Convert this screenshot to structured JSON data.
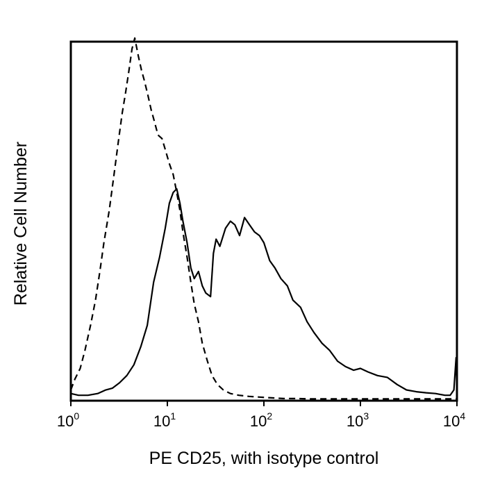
{
  "chart_data": {
    "type": "line",
    "title": "",
    "xlabel": "PE CD25, with isotype control",
    "ylabel": "Relative Cell Number",
    "xscale": "log10",
    "xlim": [
      1,
      10000
    ],
    "ylim": [
      0,
      100
    ],
    "grid": false,
    "x_ticks": [
      {
        "value": 1,
        "base": "10",
        "exp": "0"
      },
      {
        "value": 10,
        "base": "10",
        "exp": "1"
      },
      {
        "value": 100,
        "base": "10",
        "exp": "2"
      },
      {
        "value": 1000,
        "base": "10",
        "exp": "3"
      },
      {
        "value": 10000,
        "base": "10",
        "exp": "4"
      }
    ],
    "series": [
      {
        "name": "PE CD25",
        "style": "solid",
        "x": [
          1.0,
          1.2,
          1.5,
          1.9,
          2.3,
          2.7,
          3.2,
          3.8,
          4.5,
          5.3,
          6.2,
          7.2,
          8.3,
          9.5,
          10.5,
          11.5,
          12.5,
          13.5,
          14.5,
          16.0,
          17.5,
          19.0,
          21.0,
          23.0,
          25.0,
          28.0,
          30.0,
          32.0,
          35.0,
          40.0,
          45.0,
          50.0,
          56.0,
          63.0,
          71.0,
          80.0,
          90.0,
          100,
          115,
          130,
          150,
          175,
          200,
          240,
          280,
          330,
          400,
          480,
          580,
          700,
          850,
          1000,
          1200,
          1500,
          1900,
          2400,
          3000,
          3800,
          4800,
          6000,
          7500,
          8500,
          9300,
          9800,
          10000
        ],
        "y": [
          2,
          1.5,
          1.5,
          2,
          3,
          3.5,
          5,
          7,
          10,
          15,
          21,
          33,
          40,
          48,
          55,
          58,
          59,
          55,
          50,
          44,
          37,
          34,
          36,
          32,
          30,
          29,
          41,
          45,
          43,
          48,
          50,
          49,
          46,
          51,
          49,
          47,
          46,
          44,
          39,
          37,
          34,
          32,
          28,
          26,
          22,
          19,
          16,
          14,
          11,
          9.5,
          8.5,
          9,
          8,
          7,
          6.5,
          4.5,
          3,
          2.5,
          2.2,
          2,
          1.5,
          1.5,
          3,
          12,
          2
        ]
      },
      {
        "name": "isotype control",
        "style": "dashed",
        "x": [
          1.0,
          1.1,
          1.25,
          1.4,
          1.6,
          1.8,
          2.0,
          2.2,
          2.5,
          2.8,
          3.1,
          3.4,
          3.7,
          4.0,
          4.3,
          4.6,
          5.0,
          5.4,
          5.8,
          6.3,
          6.8,
          7.3,
          8.0,
          8.8,
          9.5,
          10.5,
          11.5,
          12.5,
          13.5,
          14.5,
          16.0,
          17.5,
          19.0,
          21.0,
          23.0,
          26.0,
          29.0,
          33.0,
          38.0,
          45.0,
          55.0,
          70.0,
          90.0,
          120,
          160,
          220,
          300,
          500,
          1000,
          3000,
          10000
        ],
        "y": [
          3,
          6,
          9,
          14,
          21,
          28,
          36,
          44,
          53,
          63,
          72,
          80,
          86,
          92,
          98,
          101,
          96,
          92,
          89,
          85,
          81,
          78,
          74,
          73,
          70,
          66,
          63,
          58,
          53,
          47,
          40,
          33,
          27,
          22,
          16,
          11,
          7,
          4.5,
          3,
          2,
          1.5,
          1.2,
          1,
          0.8,
          0.6,
          0.6,
          0.5,
          0.5,
          0.5,
          0.5,
          0.5
        ]
      }
    ]
  }
}
